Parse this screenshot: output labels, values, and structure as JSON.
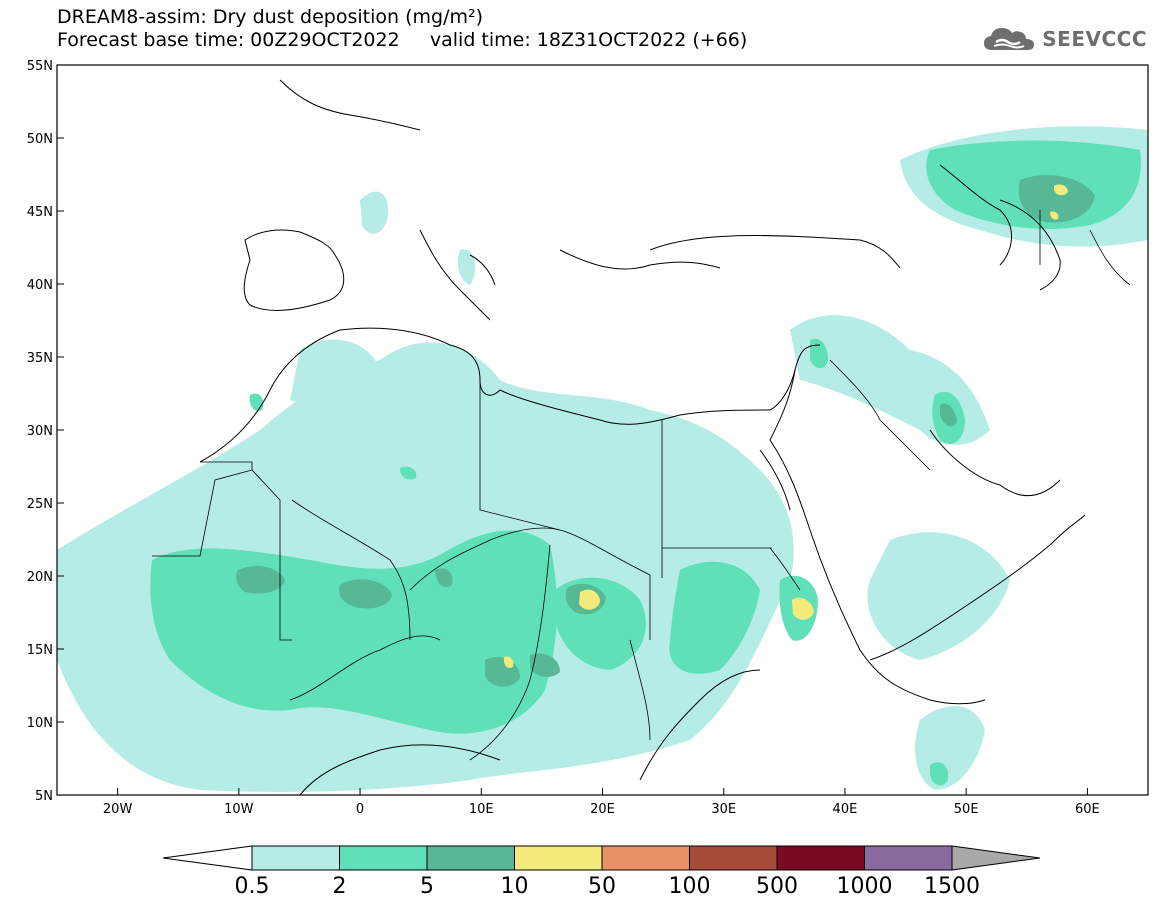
{
  "header": {
    "title_line1": "DREAM8-assim: Dry dust deposition (mg/m²)",
    "title_line2": "Forecast base time: 00Z29OCT2022     valid time: 18Z31OCT2022 (+66)"
  },
  "brand": {
    "name": "SEEVCCC",
    "icon": "cloud-logo-icon"
  },
  "map": {
    "lat_labels": [
      "55N",
      "50N",
      "45N",
      "40N",
      "35N",
      "30N",
      "25N",
      "20N",
      "15N",
      "10N",
      "5N"
    ],
    "lon_labels": [
      "20W",
      "10W",
      "0",
      "10E",
      "20E",
      "30E",
      "40E",
      "50E",
      "60E"
    ],
    "lat_range": [
      5,
      55
    ],
    "lon_range": [
      -25,
      65
    ],
    "field_colors": [
      "#b5ede6",
      "#5fe0b8",
      "#57b896",
      "#f3ea7a"
    ]
  },
  "legend": {
    "labels": [
      "0.5",
      "2",
      "5",
      "10",
      "50",
      "100",
      "500",
      "1000",
      "1500"
    ],
    "colors": [
      "#b5ede6",
      "#5fe0b8",
      "#57b896",
      "#f3ea7a",
      "#e89066",
      "#a84c3a",
      "#7a0a22",
      "#8a6a9e"
    ],
    "arrow_left_color": "#ffffff",
    "arrow_right_color": "#a9a9a9"
  }
}
